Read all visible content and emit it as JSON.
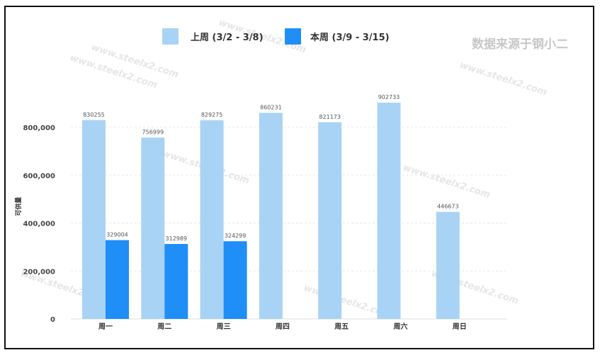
{
  "source_note": "数据来源于钢小二",
  "watermark_text": "www.steelx2.com",
  "colors": {
    "prev": "#a8d3f5",
    "curr": "#1f8ef7",
    "grid": "#e8e8e8"
  },
  "chart_data": {
    "type": "bar",
    "categories": [
      "周一",
      "周二",
      "周三",
      "周四",
      "周五",
      "周六",
      "周日"
    ],
    "series": [
      {
        "name": "上周 (3/2 - 3/8)",
        "values": [
          830255,
          756999,
          829275,
          860231,
          821173,
          902733,
          446673
        ]
      },
      {
        "name": "本周 (3/9 - 3/15)",
        "values": [
          329004,
          312989,
          324299,
          null,
          null,
          null,
          null
        ]
      }
    ],
    "ylabel": "可供量",
    "ylim": [
      0,
      950000
    ],
    "yticks": [
      0,
      200000,
      400000,
      600000,
      800000
    ],
    "ytick_labels": [
      "0",
      "200,000",
      "400,000",
      "600,000",
      "800,000"
    ],
    "grid": true,
    "legend_position": "top-center"
  }
}
